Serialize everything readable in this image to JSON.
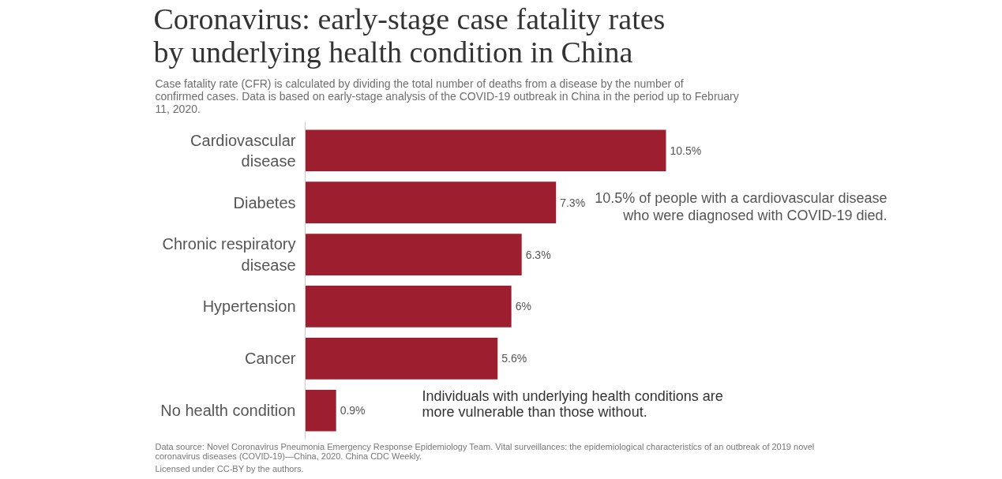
{
  "chart_data": {
    "type": "bar",
    "orientation": "horizontal",
    "title": "Coronavirus: early-stage case fatality rates by underlying health condition in China",
    "subtitle": "Case fatality rate (CFR) is calculated by dividing the total number of deaths from a disease by the number of confirmed cases. Data is based on early-stage analysis of the COVID-19 outbreak in China in the period up to February 11, 2020.",
    "categories": [
      "Cardiovascular disease",
      "Diabetes",
      "Chronic respiratory disease",
      "Hypertension",
      "Cancer",
      "No health condition"
    ],
    "values": [
      10.5,
      7.3,
      6.3,
      6,
      5.6,
      0.9
    ],
    "value_labels": [
      "10.5%",
      "7.3%",
      "6.3%",
      "6%",
      "5.6%",
      "0.9%"
    ],
    "color": "#9d1f2f",
    "tick_labels": "y",
    "grid": false,
    "annotations": [
      {
        "text": "10.5% of people with a cardiovascular disease who were diagnosed with COVID-19 died.",
        "x": 10.5,
        "y": "Cardiovascular disease"
      },
      "Individuals with underlying health conditions are more vulnerable than those without.",
      "Data source: Novel Coronavirus Pneumonia Emergency Response Epidemiology Team. Vital surveillances: the epidemiological characteristics of an outbreak of 2019 novel coronavirus diseases (COVID-19)—China, 2020. China CDC Weekly.",
      "Licensed under CC-BY by the authors."
    ]
  }
}
